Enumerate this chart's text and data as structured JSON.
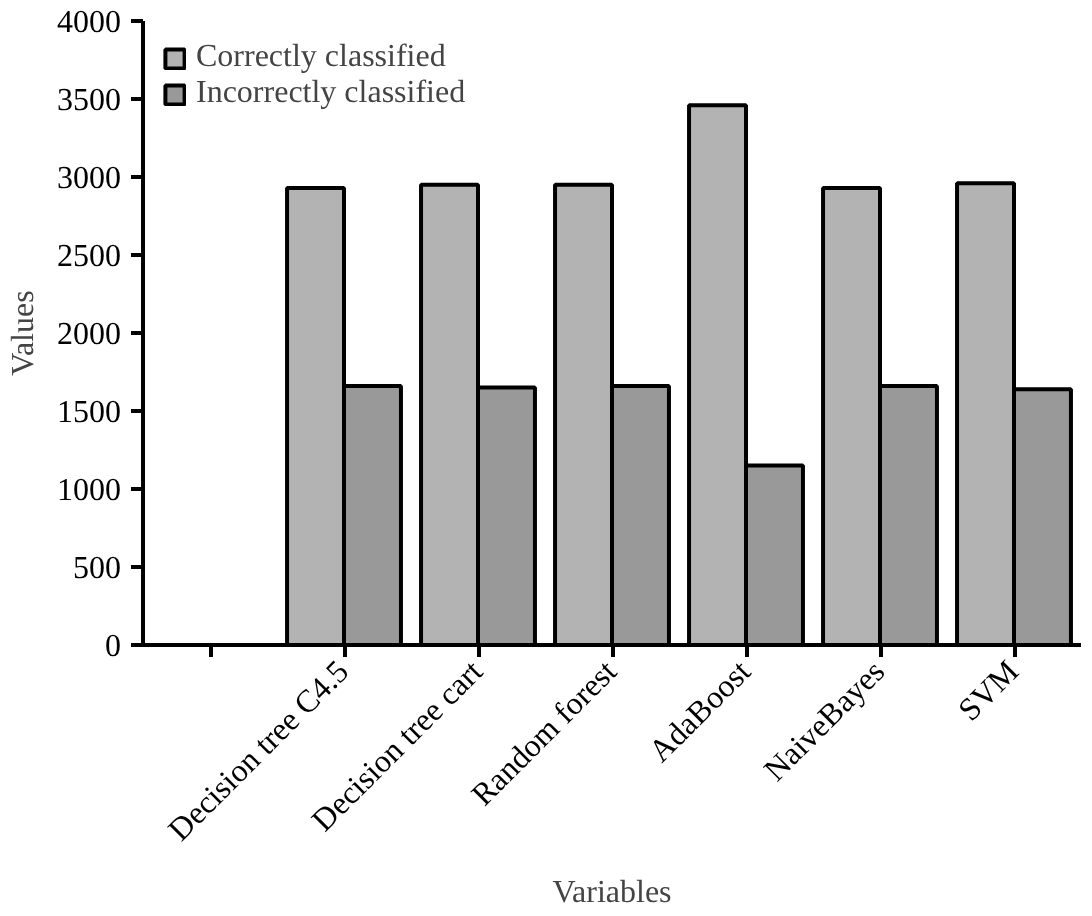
{
  "chart_data": {
    "type": "bar",
    "xlabel": "Variables",
    "ylabel": "Values",
    "categories": [
      null,
      "Decision tree C4.5",
      "Decision tree cart",
      "Random forest",
      "AdaBoost",
      "NaiveBayes",
      "SVM"
    ],
    "series": [
      {
        "name": "Correctly classified",
        "color": "#b3b3b3",
        "values": [
          null,
          2930,
          2950,
          2950,
          3460,
          2930,
          2960
        ]
      },
      {
        "name": "Incorrectly classified",
        "color": "#999999",
        "values": [
          null,
          1660,
          1650,
          1660,
          1150,
          1660,
          1640
        ]
      }
    ],
    "ylim": [
      0,
      4000
    ],
    "yticks": [
      0,
      500,
      1000,
      1500,
      2000,
      2500,
      3000,
      3500,
      4000
    ],
    "grid": false,
    "legend": "top left"
  }
}
